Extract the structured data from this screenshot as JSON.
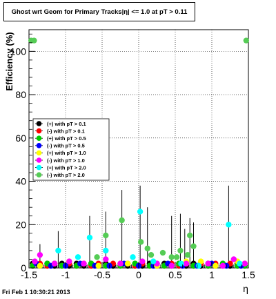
{
  "chart_data": {
    "type": "scatter",
    "title": "Ghost wrt Geom for Primary Tracks|η| <= 1.0 at pT > 0.11",
    "xlabel": "η",
    "ylabel": "Efficiency (%)",
    "xlim": [
      -1.5,
      1.5
    ],
    "ylim": [
      0,
      110
    ],
    "xticks": [
      "-1.5",
      "-1",
      "-0.5",
      "0",
      "0.5",
      "1",
      "1.5"
    ],
    "yticks": [
      "0",
      "20",
      "40",
      "60",
      "80",
      "100"
    ],
    "grid": true,
    "legend_position": "left-middle",
    "series": [
      {
        "name": "(+) with pT > 0.1",
        "color": "#000000",
        "points": [
          [
            -1.45,
            2
          ],
          [
            -1.35,
            1
          ],
          [
            -1.25,
            2
          ],
          [
            -1.15,
            1
          ],
          [
            -1.05,
            2
          ],
          [
            -0.95,
            1
          ],
          [
            -0.85,
            2
          ],
          [
            -0.75,
            1
          ],
          [
            -0.65,
            2
          ],
          [
            -0.55,
            1
          ],
          [
            -0.45,
            2
          ],
          [
            -0.35,
            1
          ],
          [
            -0.25,
            2
          ],
          [
            -0.15,
            1
          ],
          [
            -0.05,
            2
          ],
          [
            0.05,
            1
          ],
          [
            0.15,
            2
          ],
          [
            0.25,
            1
          ],
          [
            0.35,
            2
          ],
          [
            0.45,
            1
          ],
          [
            0.55,
            2
          ],
          [
            0.65,
            1
          ],
          [
            0.75,
            2
          ],
          [
            0.85,
            1
          ],
          [
            0.95,
            2
          ],
          [
            1.05,
            1
          ],
          [
            1.15,
            2
          ],
          [
            1.25,
            1
          ],
          [
            1.35,
            2
          ],
          [
            1.45,
            1
          ]
        ]
      },
      {
        "name": "(-) with pT > 0.1",
        "color": "#ff0000",
        "points": [
          [
            -1.45,
            1
          ],
          [
            -1.35,
            2
          ],
          [
            -1.25,
            1
          ],
          [
            -1.15,
            2
          ],
          [
            -1.05,
            1
          ],
          [
            -0.95,
            2
          ],
          [
            -0.85,
            1
          ],
          [
            -0.75,
            2
          ],
          [
            -0.65,
            1
          ],
          [
            -0.55,
            2
          ],
          [
            -0.45,
            1
          ],
          [
            -0.35,
            2
          ],
          [
            -0.25,
            1
          ],
          [
            -0.15,
            2
          ],
          [
            -0.05,
            1
          ],
          [
            0.05,
            2
          ],
          [
            0.15,
            1
          ],
          [
            0.25,
            2
          ],
          [
            0.35,
            1
          ],
          [
            0.45,
            2
          ],
          [
            0.55,
            1
          ],
          [
            0.65,
            2
          ],
          [
            0.75,
            1
          ],
          [
            0.85,
            2
          ],
          [
            0.95,
            1
          ],
          [
            1.05,
            2
          ],
          [
            1.15,
            1
          ],
          [
            1.25,
            2
          ],
          [
            1.35,
            1
          ],
          [
            1.45,
            2
          ]
        ]
      },
      {
        "name": "(+) with pT > 0.5",
        "color": "#00cc00",
        "points": [
          [
            -1.45,
            1
          ],
          [
            -1.25,
            2
          ],
          [
            -1.05,
            1
          ],
          [
            -0.85,
            1
          ],
          [
            -0.65,
            2
          ],
          [
            -0.45,
            1
          ],
          [
            -0.25,
            1
          ],
          [
            -0.05,
            2
          ],
          [
            0.15,
            1
          ],
          [
            0.35,
            1
          ],
          [
            0.55,
            2
          ],
          [
            0.75,
            1
          ],
          [
            0.95,
            1
          ],
          [
            1.15,
            2
          ],
          [
            1.35,
            1
          ],
          [
            1.45,
            1
          ]
        ]
      },
      {
        "name": "(-) with pT > 0.5",
        "color": "#0000ff",
        "points": [
          [
            -1.4,
            2
          ],
          [
            -1.2,
            1
          ],
          [
            -1.0,
            1
          ],
          [
            -0.8,
            2
          ],
          [
            -0.6,
            1
          ],
          [
            -0.4,
            1
          ],
          [
            -0.2,
            2
          ],
          [
            0.0,
            1
          ],
          [
            0.2,
            1
          ],
          [
            0.4,
            2
          ],
          [
            0.6,
            1
          ],
          [
            0.8,
            1
          ],
          [
            1.0,
            2
          ],
          [
            1.2,
            1
          ],
          [
            1.4,
            1
          ]
        ]
      },
      {
        "name": "(+) with pT > 1.0",
        "color": "#ffff00",
        "points": [
          [
            -1.35,
            1
          ],
          [
            -0.95,
            3
          ],
          [
            -0.55,
            1
          ],
          [
            -0.15,
            2
          ],
          [
            0.25,
            1
          ],
          [
            0.65,
            3
          ],
          [
            0.85,
            3
          ],
          [
            1.05,
            1
          ],
          [
            1.35,
            3
          ]
        ]
      },
      {
        "name": "(-) with pT > 1.0",
        "color": "#ff00ff",
        "points": [
          [
            -1.42,
            3
          ],
          [
            -1.35,
            6
          ],
          [
            -1.15,
            2
          ],
          [
            -0.95,
            3
          ],
          [
            -0.75,
            2
          ],
          [
            -0.45,
            4
          ],
          [
            -0.25,
            2
          ],
          [
            0.05,
            3
          ],
          [
            0.25,
            2
          ],
          [
            0.45,
            1
          ],
          [
            0.65,
            2
          ],
          [
            0.95,
            2
          ],
          [
            1.15,
            1
          ],
          [
            1.3,
            4
          ],
          [
            1.45,
            2
          ]
        ]
      },
      {
        "name": "(+) with pT > 2.0",
        "color": "#00ffff",
        "points": [
          [
            -1.1,
            8
          ],
          [
            -0.83,
            5
          ],
          [
            -0.67,
            14
          ],
          [
            -0.45,
            8
          ],
          [
            -0.08,
            5
          ],
          [
            0.02,
            26
          ],
          [
            0.2,
            3
          ],
          [
            0.58,
            2
          ],
          [
            0.82,
            1
          ],
          [
            1.23,
            20
          ],
          [
            1.38,
            2
          ]
        ]
      },
      {
        "name": "(-) with pT > 2.0",
        "color": "#55cc55",
        "points": [
          [
            -1.47,
            105
          ],
          [
            -1.43,
            105
          ],
          [
            -0.57,
            5
          ],
          [
            -0.45,
            15
          ],
          [
            -0.23,
            22
          ],
          [
            0.03,
            12
          ],
          [
            0.12,
            9
          ],
          [
            0.17,
            6
          ],
          [
            0.33,
            7
          ],
          [
            0.45,
            5
          ],
          [
            0.52,
            5
          ],
          [
            0.57,
            8
          ],
          [
            0.67,
            6
          ],
          [
            0.7,
            15
          ],
          [
            0.75,
            10
          ],
          [
            1.47,
            105
          ]
        ]
      }
    ],
    "error_bars": [
      {
        "x": -1.35,
        "ylo": 0,
        "yhi": 11
      },
      {
        "x": -1.1,
        "ylo": 0,
        "yhi": 17
      },
      {
        "x": -0.67,
        "ylo": 0,
        "yhi": 24
      },
      {
        "x": -0.45,
        "ylo": 0,
        "yhi": 26
      },
      {
        "x": -0.23,
        "ylo": 3,
        "yhi": 36
      },
      {
        "x": 0.02,
        "ylo": 0,
        "yhi": 38
      },
      {
        "x": 0.12,
        "ylo": 0,
        "yhi": 28
      },
      {
        "x": 0.45,
        "ylo": 0,
        "yhi": 24
      },
      {
        "x": 0.57,
        "ylo": 0,
        "yhi": 25
      },
      {
        "x": 0.63,
        "ylo": 0,
        "yhi": 18
      },
      {
        "x": 0.7,
        "ylo": 0,
        "yhi": 23
      },
      {
        "x": 0.75,
        "ylo": 0,
        "yhi": 21
      },
      {
        "x": 1.23,
        "ylo": 0,
        "yhi": 38
      }
    ]
  },
  "footer_text": "Fri Feb  1 10:30:21 2013"
}
